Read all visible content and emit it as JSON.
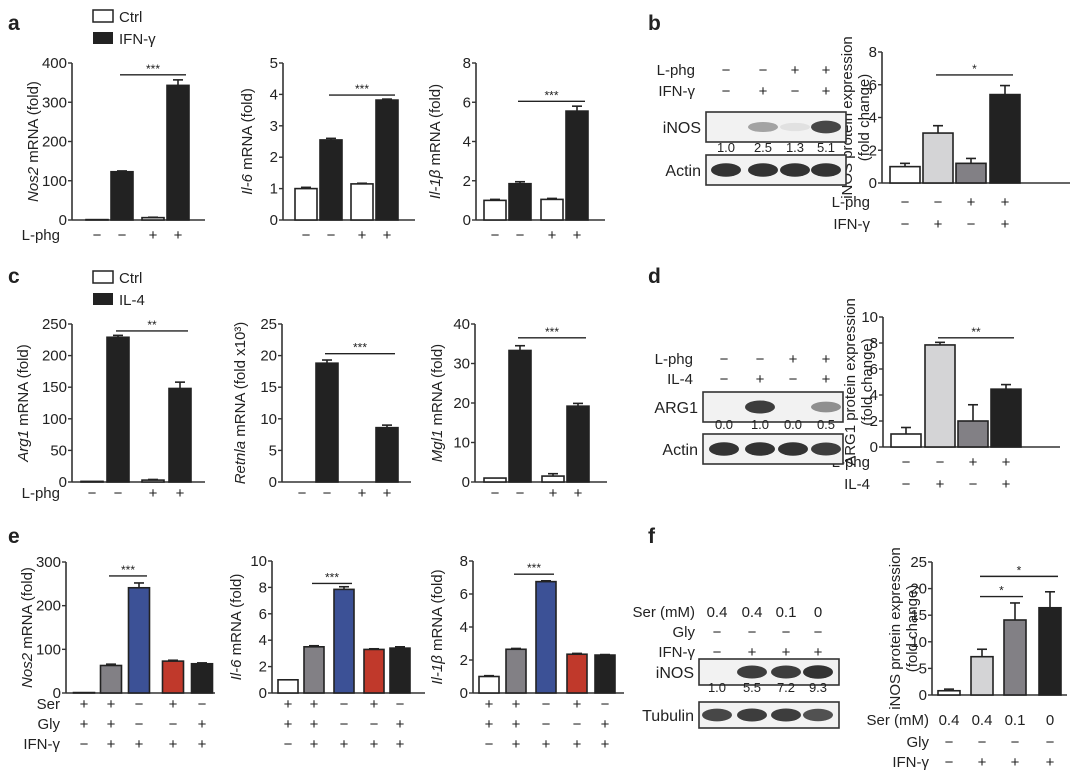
{
  "figure": {
    "panel_labels": [
      "a",
      "b",
      "c",
      "d",
      "e",
      "f"
    ],
    "colors": {
      "white": "#ffffff",
      "black": "#222222",
      "light_gray": "#d4d4d6",
      "mid_gray": "#828085",
      "dark_gray": "#7f7f7f",
      "blue": "#3c5196",
      "red": "#c0392b",
      "axis": "#333333"
    }
  },
  "legends": {
    "a": [
      {
        "label": "Ctrl",
        "fill": "white"
      },
      {
        "label": "IFN-γ",
        "fill": "black"
      }
    ],
    "c": [
      {
        "label": "Ctrl",
        "fill": "white"
      },
      {
        "label": "IL-4",
        "fill": "black"
      }
    ]
  },
  "chart_data": [
    {
      "id": "a1",
      "panel": "a",
      "type": "bar",
      "ylabel": "Nos2 mRNA (fold)",
      "ylabel_italic_part": "Nos2",
      "ylim": [
        0,
        400
      ],
      "yticks": [
        0,
        100,
        200,
        300,
        400
      ],
      "categories": [
        "Ctrl, L-phg −",
        "IFN-γ, L-phg −",
        "Ctrl, L-phg +",
        "IFN-γ, L-phg +"
      ],
      "values": [
        1,
        123,
        6,
        343
      ],
      "errors": [
        0,
        2,
        1,
        14
      ],
      "fills": [
        "white",
        "black",
        "white",
        "black"
      ],
      "row_labels": [
        "L-phg"
      ],
      "conditions": [
        [
          "−",
          "−",
          "+",
          "+"
        ]
      ],
      "significance": [
        {
          "from": 1,
          "to": 3,
          "label": "***",
          "y": 370
        }
      ]
    },
    {
      "id": "a2",
      "panel": "a",
      "type": "bar",
      "ylabel": "Il-6 mRNA (fold)",
      "ylabel_italic_part": "Il-6",
      "ylim": [
        0,
        5
      ],
      "yticks": [
        0,
        1,
        2,
        3,
        4,
        5
      ],
      "categories": [
        "Ctrl, L-phg −",
        "IFN-γ, L-phg −",
        "Ctrl, L-phg +",
        "IFN-γ, L-phg +"
      ],
      "values": [
        1.0,
        2.55,
        1.15,
        3.82
      ],
      "errors": [
        0.04,
        0.05,
        0.02,
        0.03
      ],
      "fills": [
        "white",
        "black",
        "white",
        "black"
      ],
      "row_labels": [],
      "conditions": [
        [
          "−",
          "−",
          "+",
          "+"
        ]
      ],
      "significance": [
        {
          "from": 1,
          "to": 3,
          "label": "***",
          "y": 3.98
        }
      ]
    },
    {
      "id": "a3",
      "panel": "a",
      "type": "bar",
      "ylabel": "Il-1β mRNA (fold)",
      "ylabel_italic_part": "Il-1β",
      "ylim": [
        0,
        8
      ],
      "yticks": [
        0,
        2,
        4,
        6,
        8
      ],
      "categories": [
        "Ctrl, L-phg −",
        "IFN-γ, L-phg −",
        "Ctrl, L-phg +",
        "IFN-γ, L-phg +"
      ],
      "values": [
        1.0,
        1.85,
        1.05,
        5.55
      ],
      "errors": [
        0.05,
        0.1,
        0.05,
        0.25
      ],
      "fills": [
        "white",
        "black",
        "white",
        "black"
      ],
      "row_labels": [],
      "conditions": [
        [
          "−",
          "−",
          "+",
          "+"
        ]
      ],
      "significance": [
        {
          "from": 1,
          "to": 3,
          "label": "***",
          "y": 6.05
        }
      ]
    },
    {
      "id": "b",
      "panel": "b",
      "type": "bar",
      "ylabel": "iNOS protein expression (fold change)",
      "ylabel_lines": [
        "iNOS protein expression",
        "(fold change)"
      ],
      "ylim": [
        0,
        8
      ],
      "yticks": [
        0,
        2,
        4,
        6,
        8
      ],
      "categories": [
        "L-phg − / IFN-γ −",
        "L-phg − / IFN-γ +",
        "L-phg + / IFN-γ −",
        "L-phg + / IFN-γ +"
      ],
      "values": [
        1.0,
        3.05,
        1.2,
        5.4
      ],
      "errors": [
        0.2,
        0.45,
        0.3,
        0.55
      ],
      "fills": [
        "white",
        "light_gray",
        "mid_gray",
        "black"
      ],
      "row_labels": [
        "L-phg",
        "IFN-γ"
      ],
      "conditions": [
        [
          "−",
          "−",
          "+",
          "+"
        ],
        [
          "−",
          "+",
          "−",
          "+"
        ]
      ],
      "significance": [
        {
          "from": 1,
          "to": 3,
          "label": "*",
          "y": 6.6
        }
      ]
    },
    {
      "id": "c1",
      "panel": "c",
      "type": "bar",
      "ylabel": "Arg1 mRNA (fold)",
      "ylabel_italic_part": "Arg1",
      "ylim": [
        0,
        250
      ],
      "yticks": [
        0,
        50,
        100,
        150,
        200,
        250
      ],
      "categories": [
        "Ctrl, L-phg −",
        "IL-4, L-phg −",
        "Ctrl, L-phg +",
        "IL-4, L-phg +"
      ],
      "values": [
        1,
        229,
        3,
        148
      ],
      "errors": [
        0,
        3,
        1,
        10
      ],
      "fills": [
        "white",
        "black",
        "white",
        "black"
      ],
      "row_labels": [
        "L-phg"
      ],
      "conditions": [
        [
          "−",
          "−",
          "+",
          "+"
        ]
      ],
      "significance": [
        {
          "from": 1,
          "to": 3,
          "label": "**",
          "y": 239
        }
      ]
    },
    {
      "id": "c2",
      "panel": "c",
      "type": "bar",
      "ylabel": "Retnla mRNA (fold x10³)",
      "ylabel_italic_part": "Retnla",
      "ylim": [
        0,
        25
      ],
      "yticks": [
        0,
        5,
        10,
        15,
        20,
        25
      ],
      "categories": [
        "Ctrl, L-phg −",
        "IL-4, L-phg −",
        "Ctrl, L-phg +",
        "IL-4, L-phg +"
      ],
      "values": [
        0,
        18.8,
        0,
        8.6
      ],
      "errors": [
        0,
        0.5,
        0,
        0.4
      ],
      "fills": [
        "white",
        "black",
        "white",
        "black"
      ],
      "row_labels": [],
      "conditions": [
        [
          "−",
          "−",
          "+",
          "+"
        ]
      ],
      "significance": [
        {
          "from": 1,
          "to": 3,
          "label": "***",
          "y": 20.3
        }
      ]
    },
    {
      "id": "c3",
      "panel": "c",
      "type": "bar",
      "ylabel": "Mgl1 mRNA (fold)",
      "ylabel_italic_part": "Mgl1",
      "ylim": [
        0,
        40
      ],
      "yticks": [
        0,
        10,
        20,
        30,
        40
      ],
      "categories": [
        "Ctrl, L-phg −",
        "IL-4, L-phg −",
        "Ctrl, L-phg +",
        "IL-4, L-phg +"
      ],
      "values": [
        1,
        33.3,
        1.5,
        19.2
      ],
      "errors": [
        0,
        1.2,
        0.6,
        0.7
      ],
      "fills": [
        "white",
        "black",
        "white",
        "black"
      ],
      "row_labels": [],
      "conditions": [
        [
          "−",
          "−",
          "+",
          "+"
        ]
      ],
      "significance": [
        {
          "from": 1,
          "to": 3,
          "label": "***",
          "y": 36.5
        }
      ]
    },
    {
      "id": "d",
      "panel": "d",
      "type": "bar",
      "ylabel": "ARG1 protein expression (fold change)",
      "ylabel_lines": [
        "ARG1 protein expression",
        "(fold change)"
      ],
      "ylim": [
        0,
        10
      ],
      "yticks": [
        0,
        2,
        4,
        6,
        8,
        10
      ],
      "categories": [
        "L-phg − / IL-4 −",
        "L-phg − / IL-4 +",
        "L-phg + / IL-4 −",
        "L-phg + / IL-4 +"
      ],
      "values": [
        1.0,
        7.85,
        2.0,
        4.45
      ],
      "errors": [
        0.5,
        0.2,
        1.25,
        0.35
      ],
      "fills": [
        "white",
        "light_gray",
        "mid_gray",
        "black"
      ],
      "row_labels": [
        "L-phg",
        "IL-4"
      ],
      "conditions": [
        [
          "−",
          "−",
          "+",
          "+"
        ],
        [
          "−",
          "+",
          "−",
          "+"
        ]
      ],
      "significance": [
        {
          "from": 1,
          "to": 3,
          "label": "**",
          "y": 8.4
        }
      ]
    },
    {
      "id": "e1",
      "panel": "e",
      "type": "bar",
      "ylabel": "Nos2 mRNA (fold)",
      "ylabel_italic_part": "Nos2",
      "ylim": [
        0,
        300
      ],
      "yticks": [
        0,
        100,
        200,
        300
      ],
      "categories": [
        "Ser+ Gly+ IFN-γ−",
        "Ser+ Gly+ IFN-γ+",
        "Ser− Gly− IFN-γ+",
        "Ser+ Gly− IFN-γ+",
        "Ser− Gly+ IFN-γ+"
      ],
      "values": [
        1,
        63,
        241,
        73,
        67
      ],
      "errors": [
        0,
        3,
        11,
        2,
        2
      ],
      "fills": [
        "white",
        "mid_gray",
        "blue",
        "red",
        "black"
      ],
      "row_labels": [
        "Ser",
        "Gly",
        "IFN-γ"
      ],
      "conditions": [
        [
          "+",
          "+",
          "−",
          "+",
          "−"
        ],
        [
          "+",
          "+",
          "−",
          "−",
          "+"
        ],
        [
          "−",
          "+",
          "+",
          "+",
          "+"
        ]
      ],
      "significance": [
        {
          "from": 1,
          "to": 2,
          "label": "***",
          "y": 268
        }
      ]
    },
    {
      "id": "e2",
      "panel": "e",
      "type": "bar",
      "ylabel": "Il-6 mRNA (fold)",
      "ylabel_italic_part": "Il-6",
      "ylim": [
        0,
        10
      ],
      "yticks": [
        0,
        2,
        4,
        6,
        8,
        10
      ],
      "categories": [
        "Ser+ Gly+ IFN-γ−",
        "Ser+ Gly+ IFN-γ+",
        "Ser− Gly− IFN-γ+",
        "Ser+ Gly− IFN-γ+",
        "Ser− Gly+ IFN-γ+"
      ],
      "values": [
        1.0,
        3.5,
        7.85,
        3.3,
        3.4
      ],
      "errors": [
        0,
        0.08,
        0.2,
        0.05,
        0.1
      ],
      "fills": [
        "white",
        "mid_gray",
        "blue",
        "red",
        "black"
      ],
      "row_labels": [],
      "conditions": [
        [
          "+",
          "+",
          "−",
          "+",
          "−"
        ],
        [
          "+",
          "+",
          "−",
          "−",
          "+"
        ],
        [
          "−",
          "+",
          "+",
          "+",
          "+"
        ]
      ],
      "significance": [
        {
          "from": 1,
          "to": 2,
          "label": "***",
          "y": 8.3
        }
      ]
    },
    {
      "id": "e3",
      "panel": "e",
      "type": "bar",
      "ylabel": "Il-1β mRNA (fold)",
      "ylabel_italic_part": "Il-1β",
      "ylim": [
        0,
        8
      ],
      "yticks": [
        0,
        2,
        4,
        6,
        8
      ],
      "categories": [
        "Ser+ Gly+ IFN-γ−",
        "Ser+ Gly+ IFN-γ+",
        "Ser− Gly− IFN-γ+",
        "Ser+ Gly− IFN-γ+",
        "Ser− Gly+ IFN-γ+"
      ],
      "values": [
        1.0,
        2.65,
        6.75,
        2.35,
        2.3
      ],
      "errors": [
        0.05,
        0.05,
        0.05,
        0.05,
        0.03
      ],
      "fills": [
        "white",
        "mid_gray",
        "blue",
        "red",
        "black"
      ],
      "row_labels": [],
      "conditions": [
        [
          "+",
          "+",
          "−",
          "+",
          "−"
        ],
        [
          "+",
          "+",
          "−",
          "−",
          "+"
        ],
        [
          "−",
          "+",
          "+",
          "+",
          "+"
        ]
      ],
      "significance": [
        {
          "from": 1,
          "to": 2,
          "label": "***",
          "y": 7.2
        }
      ]
    },
    {
      "id": "f",
      "panel": "f",
      "type": "bar",
      "ylabel": "iNOS protein expression (fold change)",
      "ylabel_lines": [
        "iNOS protein expression",
        "(fold change)"
      ],
      "ylim": [
        0,
        25
      ],
      "yticks": [
        0,
        5,
        10,
        15,
        20,
        25
      ],
      "categories": [
        "Ser 0.4 / IFN-γ −",
        "Ser 0.4 / IFN-γ +",
        "Ser 0.1 / IFN-γ +",
        "Ser 0 / IFN-γ +"
      ],
      "values": [
        0.8,
        7.2,
        14.1,
        16.4
      ],
      "errors": [
        0.3,
        1.4,
        3.2,
        3.0
      ],
      "fills": [
        "white",
        "light_gray",
        "mid_gray",
        "black"
      ],
      "row_labels": [
        "Ser (mM)",
        "Gly",
        "IFN-γ"
      ],
      "conditions": [
        [
          "0.4",
          "0.4",
          "0.1",
          "0"
        ],
        [
          "−",
          "−",
          "−",
          "−"
        ],
        [
          "−",
          "+",
          "+",
          "+"
        ]
      ],
      "significance": [
        {
          "from": 1,
          "to": 3,
          "label": "*",
          "y": 22.3
        },
        {
          "from": 1,
          "to": 2,
          "label": "*",
          "y": 18.5
        }
      ]
    }
  ],
  "blots": {
    "b": {
      "row_labels": [
        "L-phg",
        "IFN-γ"
      ],
      "conditions": [
        [
          "−",
          "−",
          "+",
          "+"
        ],
        [
          "−",
          "+",
          "−",
          "+"
        ]
      ],
      "bands": [
        {
          "label": "iNOS",
          "intensity": [
            0.0,
            0.35,
            0.05,
            0.8
          ]
        },
        {
          "label": "Actin",
          "intensity": [
            0.9,
            0.9,
            0.9,
            0.9
          ]
        }
      ],
      "quant": [
        "1.0",
        "2.5",
        "1.3",
        "5.1"
      ]
    },
    "d": {
      "row_labels": [
        "L-phg",
        "IL-4"
      ],
      "conditions": [
        [
          "−",
          "−",
          "+",
          "+"
        ],
        [
          "−",
          "+",
          "−",
          "+"
        ]
      ],
      "bands": [
        {
          "label": "ARG1",
          "intensity": [
            0.0,
            0.85,
            0.0,
            0.45
          ]
        },
        {
          "label": "Actin",
          "intensity": [
            0.9,
            0.9,
            0.9,
            0.85
          ]
        }
      ],
      "quant": [
        "0.0",
        "1.0",
        "0.0",
        "0.5"
      ]
    },
    "f": {
      "row_labels": [
        "Ser (mM)",
        "Gly",
        "IFN-γ"
      ],
      "conditions": [
        [
          "0.4",
          "0.4",
          "0.1",
          "0"
        ],
        [
          "−",
          "−",
          "−",
          "−"
        ],
        [
          "−",
          "+",
          "+",
          "+"
        ]
      ],
      "bands": [
        {
          "label": "iNOS",
          "intensity": [
            0.0,
            0.85,
            0.85,
            0.9
          ]
        },
        {
          "label": "Tubulin",
          "intensity": [
            0.8,
            0.85,
            0.85,
            0.75
          ]
        }
      ],
      "quant": [
        "1.0",
        "5.5",
        "7.2",
        "9.3"
      ]
    }
  }
}
